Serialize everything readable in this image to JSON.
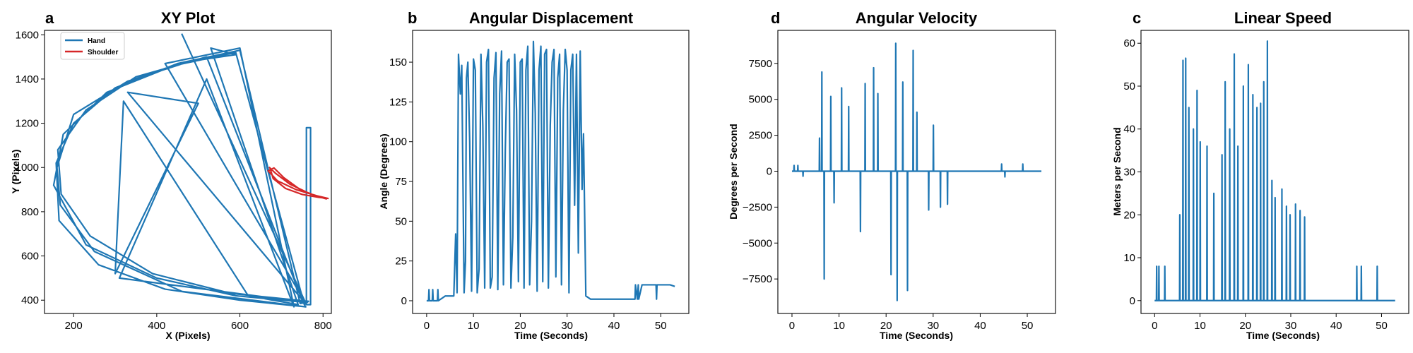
{
  "chart_data": [
    {
      "type": "line",
      "panel": "a",
      "title": "XY Plot",
      "xlabel": "X (Pixels)",
      "ylabel": "Y (Pixels)",
      "xlim": [
        130,
        820
      ],
      "ylim": [
        340,
        1620
      ],
      "xticks": [
        200,
        400,
        600,
        800
      ],
      "yticks": [
        400,
        600,
        800,
        1000,
        1200,
        1400,
        1600
      ],
      "legend": "top-left",
      "series": [
        {
          "name": "Hand",
          "color": "#1f77b4",
          "x": [
            760,
            600,
            420,
            260,
            165,
            158,
            200,
            300,
            450,
            600,
            745,
            760,
            590,
            400,
            230,
            152,
            175,
            280,
            440,
            590,
            755,
            765,
            580,
            390,
            240,
            170,
            162,
            230,
            350,
            520,
            750,
            758,
            460,
            250,
            168,
            160,
            200,
            330,
            480,
            590,
            530,
            740,
            620,
            320,
            300,
            500,
            330,
            760,
            420,
            600,
            730,
            520,
            310,
            760,
            760,
            770,
            770,
            760,
            460
          ],
          "y": [
            370,
            400,
            450,
            560,
            760,
            1020,
            1200,
            1360,
            1470,
            1530,
            385,
            390,
            420,
            500,
            650,
            920,
            1150,
            1340,
            1460,
            1520,
            380,
            395,
            430,
            520,
            690,
            880,
            1080,
            1260,
            1410,
            1500,
            400,
            370,
            440,
            620,
            830,
            1000,
            1240,
            1390,
            1480,
            1510,
            1540,
            380,
            420,
            1300,
            520,
            1290,
            1340,
            380,
            1470,
            1540,
            370,
            1400,
            500,
            390,
            1180,
            1180,
            380,
            380,
            1605
          ]
        },
        {
          "name": "Shoulder",
          "color": "#d62728",
          "x": [
            672,
            680,
            710,
            750,
            790,
            812,
            785,
            735,
            690,
            668,
            682,
            705,
            745,
            785,
            808,
            770,
            720,
            685,
            670
          ],
          "y": [
            1000,
            950,
            905,
            878,
            865,
            860,
            872,
            900,
            940,
            985,
            998,
            955,
            900,
            870,
            858,
            880,
            925,
            975,
            1002
          ]
        }
      ]
    },
    {
      "type": "line",
      "panel": "b",
      "title": "Angular Displacement",
      "xlabel": "Time (Seconds)",
      "ylabel": "Angle (Degrees)",
      "xlim": [
        -3,
        56
      ],
      "ylim": [
        -8,
        170
      ],
      "xticks": [
        0,
        10,
        20,
        30,
        40,
        50
      ],
      "yticks": [
        0,
        25,
        50,
        75,
        100,
        125,
        150
      ],
      "series": [
        {
          "name": "Angle",
          "color": "#1f77b4",
          "x": [
            0,
            0.4,
            0.5,
            0.6,
            1.2,
            1.3,
            1.4,
            2.3,
            2.4,
            2.5,
            4,
            5.8,
            6.2,
            6.5,
            6.8,
            7.2,
            7.5,
            8.0,
            8.3,
            8.5,
            8.8,
            9.2,
            9.6,
            10.0,
            10.4,
            10.8,
            11.2,
            11.6,
            12.0,
            12.4,
            12.8,
            13.2,
            13.6,
            14.0,
            14.4,
            14.8,
            15.2,
            15.6,
            16.0,
            16.4,
            16.8,
            17.2,
            17.6,
            18.0,
            18.4,
            18.8,
            19.2,
            19.6,
            20.0,
            20.4,
            20.8,
            21.2,
            21.6,
            22.0,
            22.4,
            22.8,
            23.2,
            23.6,
            24.0,
            24.4,
            24.8,
            25.2,
            25.6,
            26.0,
            26.4,
            26.8,
            27.2,
            27.6,
            28.0,
            28.4,
            28.8,
            29.2,
            29.6,
            30.0,
            30.4,
            30.8,
            31.2,
            31.6,
            32.0,
            32.4,
            32.8,
            33.2,
            33.5,
            34.0,
            35,
            40,
            44.5,
            44.6,
            45.0,
            45.2,
            45.3,
            46,
            47,
            48,
            49.0,
            49.1,
            49.2,
            50,
            51,
            52,
            53
          ],
          "y": [
            0,
            0,
            7,
            0,
            0,
            7,
            0,
            0,
            7,
            0,
            3,
            3,
            42,
            5,
            155,
            130,
            148,
            5,
            25,
            140,
            150,
            100,
            6,
            152,
            145,
            5,
            20,
            155,
            110,
            8,
            150,
            158,
            8,
            15,
            140,
            156,
            7,
            130,
            157,
            10,
            95,
            150,
            152,
            8,
            40,
            155,
            120,
            12,
            150,
            152,
            8,
            145,
            160,
            10,
            50,
            163,
            118,
            6,
            145,
            160,
            12,
            155,
            158,
            8,
            110,
            150,
            158,
            15,
            140,
            155,
            10,
            120,
            158,
            145,
            5,
            145,
            155,
            60,
            155,
            30,
            157,
            70,
            105,
            3,
            1,
            1,
            1,
            10,
            1,
            10,
            1,
            10,
            10,
            10,
            10,
            1,
            10,
            10,
            10,
            10,
            9
          ]
        }
      ]
    },
    {
      "type": "line",
      "panel": "d",
      "title": "Angular Velocity",
      "xlabel": "Time (Seconds)",
      "ylabel": "Degrees per Second",
      "xlim": [
        -3,
        56
      ],
      "ylim": [
        -9900,
        9800
      ],
      "xticks": [
        0,
        10,
        20,
        30,
        40,
        50
      ],
      "yticks": [
        -7500,
        -5000,
        -2500,
        0,
        2500,
        5000,
        7500
      ],
      "series": [
        {
          "name": "Angular velocity",
          "color": "#1f77b4",
          "x": [
            0,
            0.4,
            0.45,
            0.5,
            1.2,
            1.25,
            1.3,
            2.3,
            2.35,
            2.4,
            4,
            5.8,
            5.85,
            5.9,
            6.3,
            6.35,
            6.4,
            6.8,
            6.85,
            6.9,
            8.2,
            8.25,
            8.3,
            8.9,
            8.95,
            9.0,
            10.5,
            10.55,
            10.6,
            12.0,
            12.05,
            12.1,
            14.5,
            14.55,
            14.6,
            15.5,
            15.55,
            15.6,
            17.3,
            17.35,
            17.4,
            18.2,
            18.25,
            18.3,
            21.0,
            21.05,
            21.1,
            22.0,
            22.05,
            22.1,
            22.3,
            22.35,
            22.4,
            23.5,
            23.55,
            23.6,
            24.5,
            24.55,
            24.6,
            25.7,
            25.75,
            25.8,
            26.5,
            26.55,
            26.6,
            29.0,
            29.05,
            29.1,
            30.0,
            30.05,
            30.1,
            31.5,
            31.55,
            31.6,
            33.0,
            33.05,
            33.1,
            34,
            44.5,
            44.55,
            44.6,
            45.2,
            45.25,
            45.3,
            49.0,
            49.05,
            49.1,
            53
          ],
          "y": [
            0,
            0,
            400,
            0,
            0,
            400,
            0,
            0,
            -350,
            0,
            0,
            0,
            2300,
            0,
            0,
            6900,
            0,
            0,
            -7500,
            0,
            0,
            5200,
            0,
            0,
            -2200,
            0,
            0,
            5800,
            0,
            0,
            4500,
            0,
            0,
            -4200,
            0,
            0,
            6100,
            0,
            0,
            7200,
            0,
            0,
            5400,
            0,
            0,
            -7200,
            0,
            0,
            8900,
            0,
            0,
            -9000,
            0,
            0,
            6200,
            0,
            0,
            -8300,
            0,
            0,
            8400,
            0,
            0,
            4100,
            0,
            0,
            -2700,
            0,
            0,
            3200,
            0,
            0,
            -2500,
            0,
            0,
            -2300,
            0,
            0,
            0,
            500,
            0,
            0,
            -400,
            0,
            0,
            500,
            0,
            0
          ]
        }
      ]
    },
    {
      "type": "line",
      "panel": "c",
      "title": "Linear Speed",
      "xlabel": "Time (Seconds)",
      "ylabel": "Meters per Second",
      "xlim": [
        -3,
        56
      ],
      "ylim": [
        -3,
        63
      ],
      "xticks": [
        0,
        10,
        20,
        30,
        40,
        50
      ],
      "yticks": [
        0,
        10,
        20,
        30,
        40,
        50,
        60
      ],
      "series": [
        {
          "name": "Speed",
          "color": "#1f77b4",
          "x": [
            0,
            0.4,
            0.45,
            0.5,
            0.9,
            0.95,
            1.0,
            2.2,
            2.25,
            2.3,
            4,
            5.5,
            5.55,
            5.6,
            6.2,
            6.25,
            6.3,
            6.8,
            6.85,
            6.9,
            7.5,
            7.55,
            7.6,
            8.5,
            8.55,
            8.6,
            9.3,
            9.35,
            9.4,
            10.0,
            10.05,
            10.1,
            11.5,
            11.55,
            11.6,
            13.0,
            13.05,
            13.1,
            14.8,
            14.85,
            14.9,
            15.5,
            15.55,
            15.6,
            16.5,
            16.55,
            16.6,
            17.5,
            17.55,
            17.6,
            18.3,
            18.35,
            18.4,
            19.5,
            19.55,
            19.6,
            20.6,
            20.65,
            20.7,
            21.6,
            21.65,
            21.7,
            22.5,
            22.55,
            22.6,
            23.3,
            23.35,
            23.4,
            24.0,
            24.05,
            24.1,
            24.8,
            24.85,
            24.9,
            25.8,
            25.85,
            25.9,
            26.5,
            26.55,
            26.6,
            28.0,
            28.05,
            28.1,
            29.0,
            29.05,
            29.1,
            29.8,
            29.85,
            29.9,
            31.0,
            31.05,
            31.1,
            32.0,
            32.05,
            32.1,
            33.0,
            33.05,
            33.1,
            34,
            44.5,
            44.55,
            44.6,
            45.5,
            45.55,
            45.6,
            49.0,
            49.05,
            49.1,
            53
          ],
          "y": [
            0,
            0,
            8,
            0,
            0,
            8,
            0,
            0,
            8,
            0,
            0,
            0,
            20,
            0,
            0,
            56,
            0,
            0,
            56.5,
            0,
            0,
            45,
            0,
            0,
            40,
            0,
            0,
            49,
            0,
            0,
            37,
            0,
            0,
            36,
            0,
            0,
            25,
            0,
            0,
            34,
            0,
            0,
            51,
            0,
            0,
            40,
            0,
            0,
            57.5,
            0,
            0,
            36,
            0,
            0,
            50,
            0,
            0,
            55,
            0,
            0,
            48,
            0,
            0,
            45,
            0,
            0,
            46,
            0,
            0,
            51,
            0,
            0,
            60.5,
            0,
            0,
            28,
            0,
            0,
            24,
            0,
            0,
            26,
            0,
            0,
            22,
            0,
            0,
            20,
            0,
            0,
            22.5,
            0,
            0,
            21,
            0,
            0,
            19.5,
            0,
            0,
            0,
            8,
            0,
            0,
            8,
            0,
            0,
            8,
            0,
            0
          ]
        }
      ]
    }
  ]
}
